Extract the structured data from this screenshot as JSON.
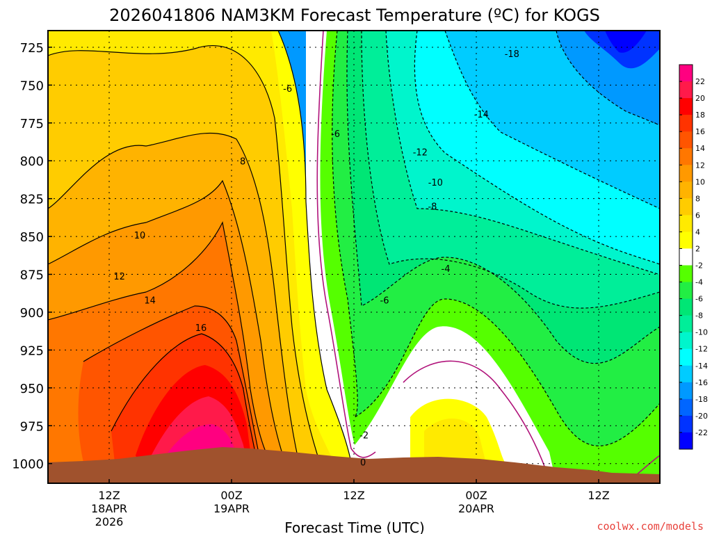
{
  "chart_data": {
    "type": "contour",
    "title": "2026041806 NAM3KM Forecast Temperature (ºC) for KOGS",
    "xlabel": "Forecast Time (UTC)",
    "ylabel": "",
    "credit": "coolwx.com/models",
    "x_ticks": [
      {
        "hour": 6,
        "lines": [
          "12Z",
          "18APR",
          "2026"
        ]
      },
      {
        "hour": 18,
        "lines": [
          "00Z",
          "19APR"
        ]
      },
      {
        "hour": 30,
        "lines": [
          "12Z"
        ]
      },
      {
        "hour": 42,
        "lines": [
          "00Z",
          "20APR"
        ]
      },
      {
        "hour": 54,
        "lines": [
          "12Z"
        ]
      }
    ],
    "xlim": [
      0,
      60
    ],
    "y_ticks": [
      725,
      750,
      775,
      800,
      825,
      850,
      875,
      900,
      925,
      950,
      975,
      1000
    ],
    "ylim": [
      1013,
      714
    ],
    "grid": "dotted",
    "colorbar": {
      "levels": [
        22,
        20,
        18,
        16,
        14,
        12,
        10,
        8,
        6,
        4,
        2,
        -2,
        -4,
        -6,
        -8,
        -10,
        -12,
        -14,
        -16,
        -18,
        -20,
        -22
      ],
      "labels": [
        "22",
        "20",
        "18",
        "16",
        "14",
        "12",
        "10",
        "8",
        "6",
        "4",
        "2",
        "-2",
        "-4",
        "-6",
        "-8",
        "-10",
        "-12",
        "-14",
        "-16",
        "-18",
        "-20",
        "-22"
      ],
      "colors": [
        "#ff0080",
        "#ff1a4a",
        "#ff0000",
        "#ff3300",
        "#ff5500",
        "#ff7700",
        "#ff9900",
        "#ffb300",
        "#ffcc00",
        "#ffea00",
        "#ffff00",
        "#ffffff",
        "#55ff00",
        "#22ee44",
        "#00e675",
        "#00ee99",
        "#00f5cc",
        "#00ffff",
        "#00ccff",
        "#0099ff",
        "#0066ff",
        "#0033ff",
        "#0000ff"
      ]
    },
    "contour_labels": [
      {
        "text": "-18",
        "hour": 45.5,
        "hPa": 730
      },
      {
        "text": "-6",
        "hour": 23.5,
        "hPa": 753
      },
      {
        "text": "-14",
        "hour": 42.5,
        "hPa": 770
      },
      {
        "text": "-6",
        "hour": 28.2,
        "hPa": 783
      },
      {
        "text": "-12",
        "hour": 36.5,
        "hPa": 795
      },
      {
        "text": "8",
        "hour": 19.1,
        "hPa": 801
      },
      {
        "text": "-10",
        "hour": 38.0,
        "hPa": 815
      },
      {
        "text": "-8",
        "hour": 37.7,
        "hPa": 831
      },
      {
        "text": "10",
        "hour": 9.0,
        "hPa": 850
      },
      {
        "text": "-4",
        "hour": 39.0,
        "hPa": 872
      },
      {
        "text": "12",
        "hour": 7.0,
        "hPa": 877
      },
      {
        "text": "-6",
        "hour": 33.0,
        "hPa": 893
      },
      {
        "text": "14",
        "hour": 10.0,
        "hPa": 893
      },
      {
        "text": "16",
        "hour": 15.0,
        "hPa": 911
      },
      {
        "text": "-2",
        "hour": 31.0,
        "hPa": 982
      },
      {
        "text": "0",
        "hour": 30.9,
        "hPa": 1000
      }
    ]
  }
}
